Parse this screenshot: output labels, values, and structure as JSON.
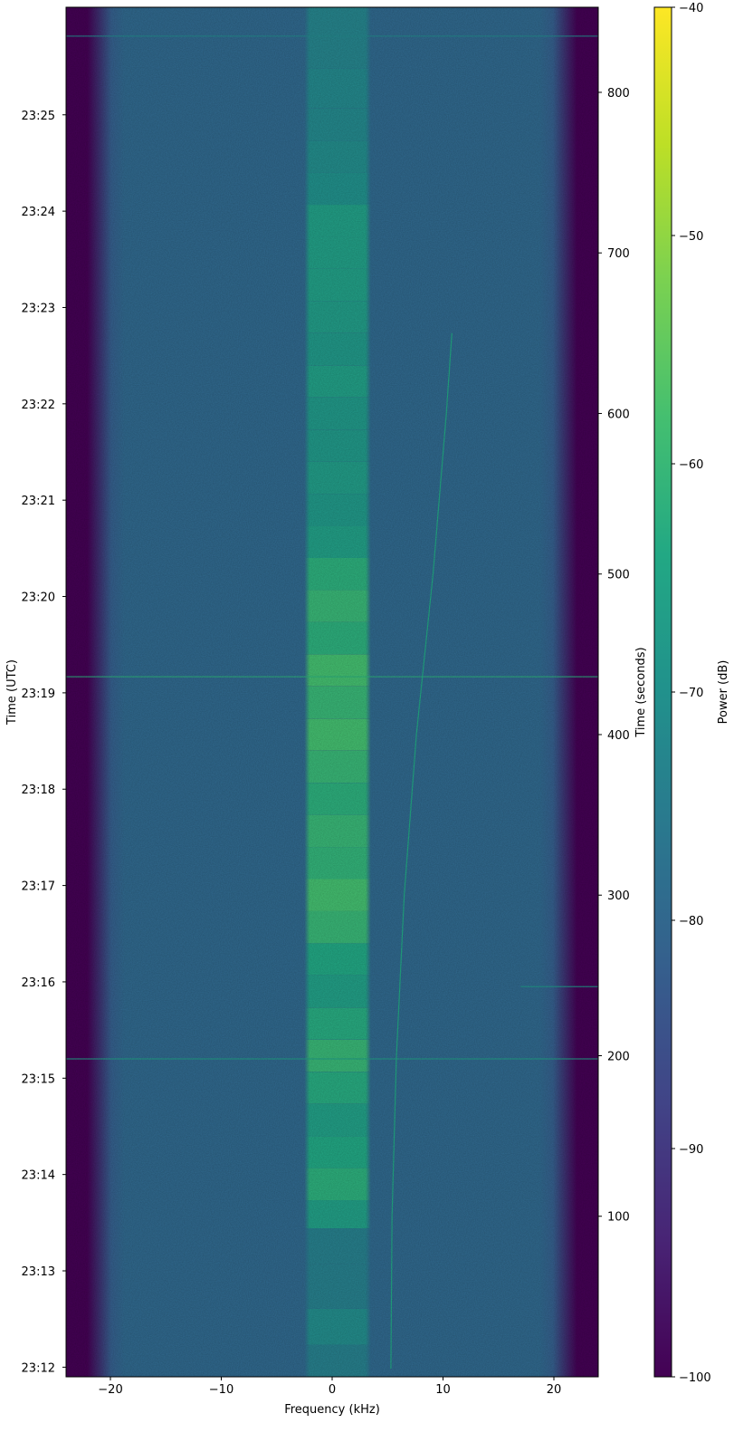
{
  "chart_data": {
    "type": "heatmap",
    "title": "",
    "xlabel": "Frequency (kHz)",
    "ylabel_left": "Time (UTC)",
    "ylabel_right": "Time (seconds)",
    "colorbar_label": "Power (dB)",
    "colormap": "viridis",
    "xlim": [
      -24,
      24
    ],
    "x_ticks": [
      -20,
      -10,
      0,
      10,
      20
    ],
    "x_tick_labels": [
      "−20",
      "−10",
      "0",
      "10",
      "20"
    ],
    "time_seconds_range": [
      0,
      853
    ],
    "right_ticks": [
      100,
      200,
      300,
      400,
      500,
      600,
      700,
      800
    ],
    "right_tick_labels": [
      "100",
      "200",
      "300",
      "400",
      "500",
      "600",
      "700",
      "800"
    ],
    "left_ticks": [
      {
        "seconds": 6,
        "label": "23:12"
      },
      {
        "seconds": 66,
        "label": "23:13"
      },
      {
        "seconds": 126,
        "label": "23:14"
      },
      {
        "seconds": 186,
        "label": "23:15"
      },
      {
        "seconds": 246,
        "label": "23:16"
      },
      {
        "seconds": 306,
        "label": "23:17"
      },
      {
        "seconds": 366,
        "label": "23:18"
      },
      {
        "seconds": 426,
        "label": "23:19"
      },
      {
        "seconds": 486,
        "label": "23:20"
      },
      {
        "seconds": 546,
        "label": "23:21"
      },
      {
        "seconds": 606,
        "label": "23:22"
      },
      {
        "seconds": 666,
        "label": "23:23"
      },
      {
        "seconds": 726,
        "label": "23:24"
      },
      {
        "seconds": 786,
        "label": "23:25"
      }
    ],
    "colorbar_range": [
      -100,
      -40
    ],
    "colorbar_ticks": [
      -100,
      -90,
      -80,
      -70,
      -60,
      -50,
      -40
    ],
    "colorbar_tick_labels": [
      "−100",
      "−90",
      "−80",
      "−70",
      "−60",
      "−50",
      "−40"
    ],
    "noise_floor_db": -78,
    "band_edge_db": -100,
    "passband_khz": [
      -20,
      20
    ],
    "signal_band_khz": [
      -2.5,
      3.5
    ],
    "signal_profile": [
      {
        "t": 10,
        "db": -74
      },
      {
        "t": 30,
        "db": -71
      },
      {
        "t": 55,
        "db": -74
      },
      {
        "t": 85,
        "db": -74
      },
      {
        "t": 100,
        "db": -66
      },
      {
        "t": 120,
        "db": -62
      },
      {
        "t": 140,
        "db": -64
      },
      {
        "t": 160,
        "db": -66
      },
      {
        "t": 180,
        "db": -63
      },
      {
        "t": 200,
        "db": -60
      },
      {
        "t": 220,
        "db": -63
      },
      {
        "t": 240,
        "db": -66
      },
      {
        "t": 260,
        "db": -64
      },
      {
        "t": 280,
        "db": -60
      },
      {
        "t": 300,
        "db": -58
      },
      {
        "t": 320,
        "db": -61
      },
      {
        "t": 340,
        "db": -60
      },
      {
        "t": 360,
        "db": -62
      },
      {
        "t": 380,
        "db": -60
      },
      {
        "t": 400,
        "db": -58
      },
      {
        "t": 420,
        "db": -60
      },
      {
        "t": 440,
        "db": -58
      },
      {
        "t": 460,
        "db": -62
      },
      {
        "t": 480,
        "db": -60
      },
      {
        "t": 500,
        "db": -62
      },
      {
        "t": 520,
        "db": -66
      },
      {
        "t": 540,
        "db": -68
      },
      {
        "t": 560,
        "db": -67
      },
      {
        "t": 580,
        "db": -68
      },
      {
        "t": 600,
        "db": -68
      },
      {
        "t": 620,
        "db": -66
      },
      {
        "t": 640,
        "db": -68
      },
      {
        "t": 660,
        "db": -67
      },
      {
        "t": 680,
        "db": -66
      },
      {
        "t": 700,
        "db": -66
      },
      {
        "t": 720,
        "db": -66
      },
      {
        "t": 740,
        "db": -70
      },
      {
        "t": 760,
        "db": -71
      },
      {
        "t": 780,
        "db": -72
      },
      {
        "t": 800,
        "db": -72
      },
      {
        "t": 830,
        "db": -73
      }
    ],
    "drift_line": [
      {
        "t": 5,
        "khz": 5.3
      },
      {
        "t": 100,
        "khz": 5.4
      },
      {
        "t": 200,
        "khz": 5.8
      },
      {
        "t": 300,
        "khz": 6.5
      },
      {
        "t": 400,
        "khz": 7.6
      },
      {
        "t": 500,
        "khz": 9.1
      },
      {
        "t": 600,
        "khz": 10.3
      },
      {
        "t": 650,
        "khz": 10.8
      }
    ],
    "drift_line_db": -64,
    "horizontal_interference": [
      {
        "t": 198,
        "khz": [
          -24,
          24
        ],
        "db": -66
      },
      {
        "t": 436,
        "khz": [
          -24,
          24
        ],
        "db": -62
      },
      {
        "t": 243,
        "khz": [
          17,
          24
        ],
        "db": -68
      },
      {
        "t": 835,
        "khz": [
          -24,
          24
        ],
        "db": -72
      }
    ]
  }
}
